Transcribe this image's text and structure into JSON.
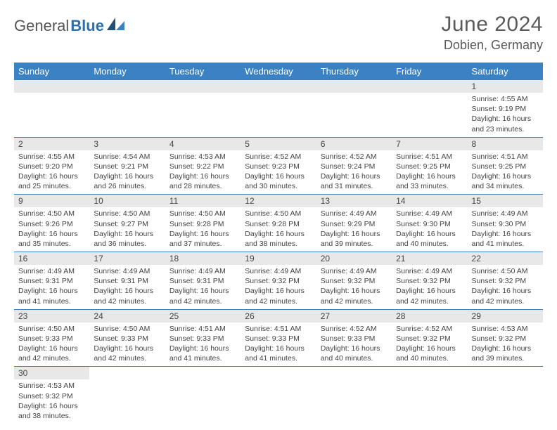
{
  "logo": {
    "text1": "General",
    "text2": "Blue"
  },
  "title": "June 2024",
  "location": "Dobien, Germany",
  "colors": {
    "header_bg": "#3a82c4",
    "header_text": "#ffffff",
    "daynum_bg": "#e8e8e8",
    "rule": "#3a82c4",
    "body_text": "#444444",
    "title_text": "#5a5a5a"
  },
  "weekdays": [
    "Sunday",
    "Monday",
    "Tuesday",
    "Wednesday",
    "Thursday",
    "Friday",
    "Saturday"
  ],
  "weeks": [
    [
      null,
      null,
      null,
      null,
      null,
      null,
      {
        "n": "1",
        "sr": "Sunrise: 4:55 AM",
        "ss": "Sunset: 9:19 PM",
        "d1": "Daylight: 16 hours",
        "d2": "and 23 minutes."
      }
    ],
    [
      {
        "n": "2",
        "sr": "Sunrise: 4:55 AM",
        "ss": "Sunset: 9:20 PM",
        "d1": "Daylight: 16 hours",
        "d2": "and 25 minutes."
      },
      {
        "n": "3",
        "sr": "Sunrise: 4:54 AM",
        "ss": "Sunset: 9:21 PM",
        "d1": "Daylight: 16 hours",
        "d2": "and 26 minutes."
      },
      {
        "n": "4",
        "sr": "Sunrise: 4:53 AM",
        "ss": "Sunset: 9:22 PM",
        "d1": "Daylight: 16 hours",
        "d2": "and 28 minutes."
      },
      {
        "n": "5",
        "sr": "Sunrise: 4:52 AM",
        "ss": "Sunset: 9:23 PM",
        "d1": "Daylight: 16 hours",
        "d2": "and 30 minutes."
      },
      {
        "n": "6",
        "sr": "Sunrise: 4:52 AM",
        "ss": "Sunset: 9:24 PM",
        "d1": "Daylight: 16 hours",
        "d2": "and 31 minutes."
      },
      {
        "n": "7",
        "sr": "Sunrise: 4:51 AM",
        "ss": "Sunset: 9:25 PM",
        "d1": "Daylight: 16 hours",
        "d2": "and 33 minutes."
      },
      {
        "n": "8",
        "sr": "Sunrise: 4:51 AM",
        "ss": "Sunset: 9:25 PM",
        "d1": "Daylight: 16 hours",
        "d2": "and 34 minutes."
      }
    ],
    [
      {
        "n": "9",
        "sr": "Sunrise: 4:50 AM",
        "ss": "Sunset: 9:26 PM",
        "d1": "Daylight: 16 hours",
        "d2": "and 35 minutes."
      },
      {
        "n": "10",
        "sr": "Sunrise: 4:50 AM",
        "ss": "Sunset: 9:27 PM",
        "d1": "Daylight: 16 hours",
        "d2": "and 36 minutes."
      },
      {
        "n": "11",
        "sr": "Sunrise: 4:50 AM",
        "ss": "Sunset: 9:28 PM",
        "d1": "Daylight: 16 hours",
        "d2": "and 37 minutes."
      },
      {
        "n": "12",
        "sr": "Sunrise: 4:50 AM",
        "ss": "Sunset: 9:28 PM",
        "d1": "Daylight: 16 hours",
        "d2": "and 38 minutes."
      },
      {
        "n": "13",
        "sr": "Sunrise: 4:49 AM",
        "ss": "Sunset: 9:29 PM",
        "d1": "Daylight: 16 hours",
        "d2": "and 39 minutes."
      },
      {
        "n": "14",
        "sr": "Sunrise: 4:49 AM",
        "ss": "Sunset: 9:30 PM",
        "d1": "Daylight: 16 hours",
        "d2": "and 40 minutes."
      },
      {
        "n": "15",
        "sr": "Sunrise: 4:49 AM",
        "ss": "Sunset: 9:30 PM",
        "d1": "Daylight: 16 hours",
        "d2": "and 41 minutes."
      }
    ],
    [
      {
        "n": "16",
        "sr": "Sunrise: 4:49 AM",
        "ss": "Sunset: 9:31 PM",
        "d1": "Daylight: 16 hours",
        "d2": "and 41 minutes."
      },
      {
        "n": "17",
        "sr": "Sunrise: 4:49 AM",
        "ss": "Sunset: 9:31 PM",
        "d1": "Daylight: 16 hours",
        "d2": "and 42 minutes."
      },
      {
        "n": "18",
        "sr": "Sunrise: 4:49 AM",
        "ss": "Sunset: 9:31 PM",
        "d1": "Daylight: 16 hours",
        "d2": "and 42 minutes."
      },
      {
        "n": "19",
        "sr": "Sunrise: 4:49 AM",
        "ss": "Sunset: 9:32 PM",
        "d1": "Daylight: 16 hours",
        "d2": "and 42 minutes."
      },
      {
        "n": "20",
        "sr": "Sunrise: 4:49 AM",
        "ss": "Sunset: 9:32 PM",
        "d1": "Daylight: 16 hours",
        "d2": "and 42 minutes."
      },
      {
        "n": "21",
        "sr": "Sunrise: 4:49 AM",
        "ss": "Sunset: 9:32 PM",
        "d1": "Daylight: 16 hours",
        "d2": "and 42 minutes."
      },
      {
        "n": "22",
        "sr": "Sunrise: 4:50 AM",
        "ss": "Sunset: 9:32 PM",
        "d1": "Daylight: 16 hours",
        "d2": "and 42 minutes."
      }
    ],
    [
      {
        "n": "23",
        "sr": "Sunrise: 4:50 AM",
        "ss": "Sunset: 9:33 PM",
        "d1": "Daylight: 16 hours",
        "d2": "and 42 minutes."
      },
      {
        "n": "24",
        "sr": "Sunrise: 4:50 AM",
        "ss": "Sunset: 9:33 PM",
        "d1": "Daylight: 16 hours",
        "d2": "and 42 minutes."
      },
      {
        "n": "25",
        "sr": "Sunrise: 4:51 AM",
        "ss": "Sunset: 9:33 PM",
        "d1": "Daylight: 16 hours",
        "d2": "and 41 minutes."
      },
      {
        "n": "26",
        "sr": "Sunrise: 4:51 AM",
        "ss": "Sunset: 9:33 PM",
        "d1": "Daylight: 16 hours",
        "d2": "and 41 minutes."
      },
      {
        "n": "27",
        "sr": "Sunrise: 4:52 AM",
        "ss": "Sunset: 9:33 PM",
        "d1": "Daylight: 16 hours",
        "d2": "and 40 minutes."
      },
      {
        "n": "28",
        "sr": "Sunrise: 4:52 AM",
        "ss": "Sunset: 9:32 PM",
        "d1": "Daylight: 16 hours",
        "d2": "and 40 minutes."
      },
      {
        "n": "29",
        "sr": "Sunrise: 4:53 AM",
        "ss": "Sunset: 9:32 PM",
        "d1": "Daylight: 16 hours",
        "d2": "and 39 minutes."
      }
    ],
    [
      {
        "n": "30",
        "sr": "Sunrise: 4:53 AM",
        "ss": "Sunset: 9:32 PM",
        "d1": "Daylight: 16 hours",
        "d2": "and 38 minutes."
      },
      null,
      null,
      null,
      null,
      null,
      null
    ]
  ]
}
